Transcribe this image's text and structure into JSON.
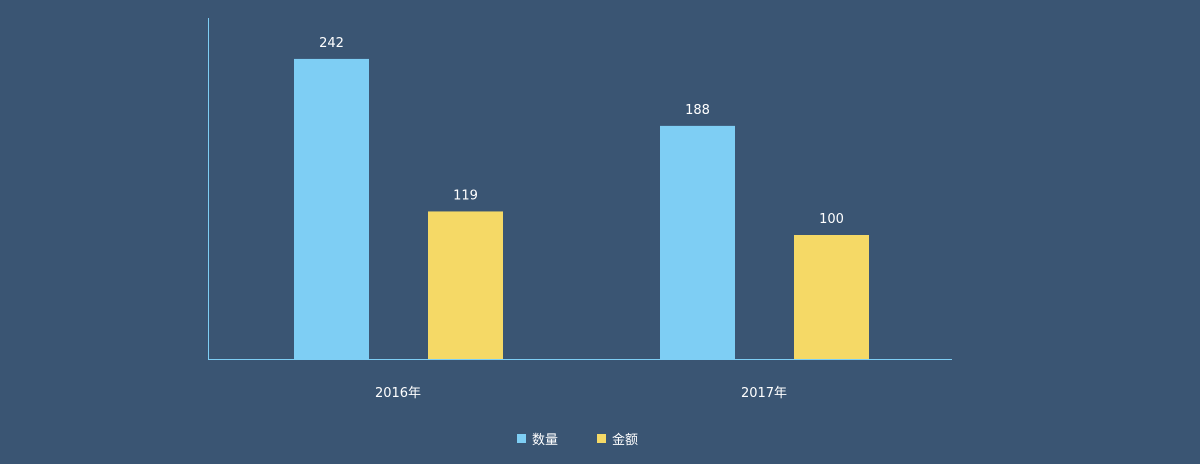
{
  "chart_data": {
    "type": "bar",
    "title": "",
    "xlabel": "",
    "ylabel": "",
    "categories": [
      "2016年",
      "2017年"
    ],
    "series": [
      {
        "name": "数量",
        "values": [
          242,
          188
        ],
        "color": "#7ecef4"
      },
      {
        "name": "金额",
        "values": [
          119,
          100
        ],
        "color": "#f5d966"
      }
    ],
    "ylim": [
      0,
      275
    ],
    "grid": false,
    "legend_position": "bottom-center",
    "axis_color": "#7ecef4",
    "background": "#3a5573"
  }
}
